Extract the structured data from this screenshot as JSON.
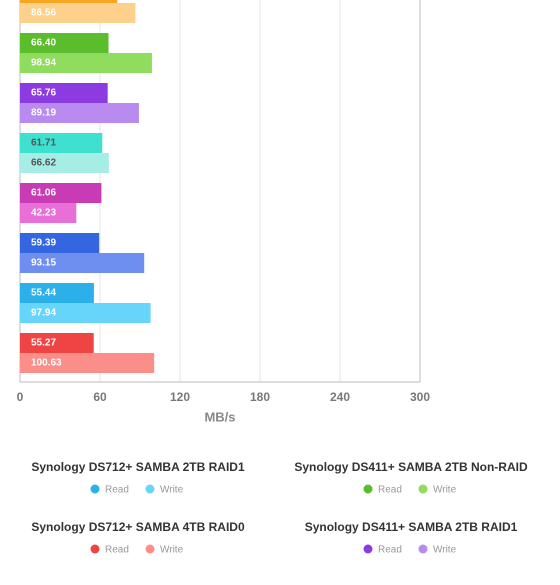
{
  "chart_data": {
    "type": "bar",
    "orientation": "horizontal",
    "groups": [
      {
        "name": null,
        "values": [
          73,
          86.56
        ],
        "value_labels": [
          null,
          "86.56"
        ],
        "colors": [
          "#f5a623",
          "#fdd08c"
        ],
        "label_color": "#ffffff"
      },
      {
        "name": "Synology DS411+ SAMBA 2TB Non-RAID",
        "values": [
          66.4,
          98.94
        ],
        "value_labels": [
          "66.40",
          "98.94"
        ],
        "colors": [
          "#5bbd2b",
          "#8fdc5e"
        ],
        "label_color": "#ffffff"
      },
      {
        "name": "Synology DS411+ SAMBA 2TB RAID1",
        "values": [
          65.76,
          89.19
        ],
        "value_labels": [
          "65.76",
          "89.19"
        ],
        "colors": [
          "#8b3be0",
          "#b98af0"
        ],
        "label_color": "#ffffff"
      },
      {
        "name": null,
        "values": [
          61.71,
          66.62
        ],
        "value_labels": [
          "61.71",
          "66.62"
        ],
        "colors": [
          "#3fe0d0",
          "#a6ede6"
        ],
        "label_color": "#555555"
      },
      {
        "name": null,
        "values": [
          61.06,
          42.23
        ],
        "value_labels": [
          "61.06",
          "42.23"
        ],
        "colors": [
          "#c93ab5",
          "#e86fd8"
        ],
        "label_color": "#ffffff"
      },
      {
        "name": null,
        "values": [
          59.39,
          93.15
        ],
        "value_labels": [
          "59.39",
          "93.15"
        ],
        "colors": [
          "#3366e0",
          "#6f8ff0"
        ],
        "label_color": "#ffffff"
      },
      {
        "name": "Synology DS712+ SAMBA 2TB RAID1",
        "values": [
          55.44,
          97.94
        ],
        "value_labels": [
          "55.44",
          "97.94"
        ],
        "colors": [
          "#2cb0ea",
          "#67d5fa"
        ],
        "label_color": "#ffffff"
      },
      {
        "name": "Synology DS712+ SAMBA 4TB RAID0",
        "values": [
          55.27,
          100.63
        ],
        "value_labels": [
          "55.27",
          "100.63"
        ],
        "colors": [
          "#ee4444",
          "#fc8e8a"
        ],
        "label_color": "#ffffff"
      }
    ],
    "series_names": [
      "Read",
      "Write"
    ],
    "legend_order": [
      6,
      1,
      7,
      2
    ],
    "xlim": [
      0,
      300
    ],
    "xticks": [
      0,
      60,
      120,
      180,
      240,
      300
    ],
    "x_label": "MB/s",
    "grid": true
  }
}
